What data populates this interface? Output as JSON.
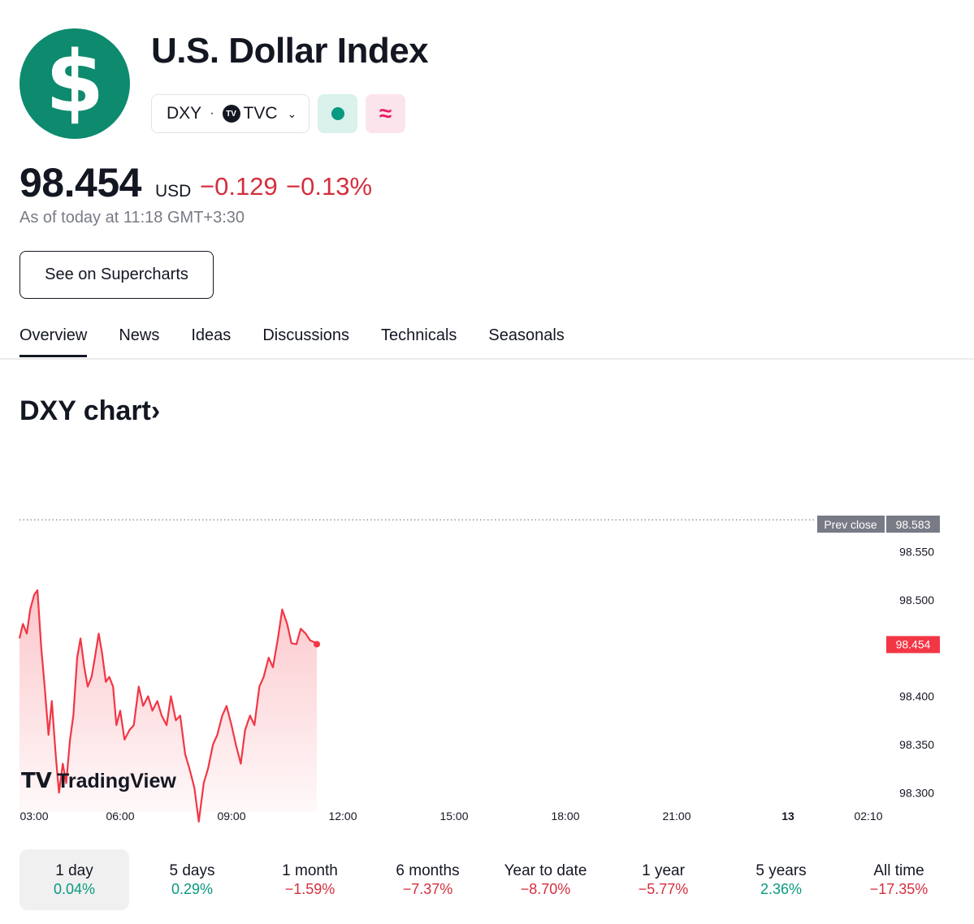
{
  "symbol": {
    "logo_glyph": "$",
    "logo_color": "#0e8a6e",
    "name": "U.S. Dollar Index",
    "ticker": "DXY",
    "separator": "·",
    "exchange_logo": "TV",
    "exchange": "TVC",
    "market_status_icon": "market-open-dot-icon",
    "delay_icon": "delayed-data-icon",
    "delay_glyph": "≈"
  },
  "quote": {
    "price": "98.454",
    "currency": "USD",
    "change": "−0.129",
    "change_percent": "−0.13%",
    "as_of": "As of today at 11:18 GMT+3:30"
  },
  "supercharts_button": "See on Supercharts",
  "tabs": [
    "Overview",
    "News",
    "Ideas",
    "Discussions",
    "Technicals",
    "Seasonals"
  ],
  "active_tab": "Overview",
  "chart_section_title": "DXY chart›",
  "chart_data": {
    "type": "area",
    "watermark": "TradingView",
    "x_tick_labels": [
      "03:00",
      "06:00",
      "09:00",
      "12:00",
      "15:00",
      "18:00",
      "21:00",
      "13",
      "02:10"
    ],
    "y_tick_labels": [
      "98.550",
      "98.500",
      "98.400",
      "98.350",
      "98.300"
    ],
    "ylim": [
      98.28,
      98.6
    ],
    "prev_close_label": "Prev close",
    "prev_close": 98.583,
    "prev_close_text": "98.583",
    "last_price": 98.454,
    "last_price_text": "98.454",
    "series": [
      {
        "x": [
          "02:30",
          "02:37",
          "02:45",
          "02:52",
          "03:00",
          "03:07",
          "03:15",
          "03:22",
          "03:30",
          "03:37",
          "03:45",
          "03:52",
          "04:00",
          "04:07",
          "04:15",
          "04:22",
          "04:30",
          "04:37",
          "04:45",
          "04:52",
          "05:00",
          "05:07",
          "05:15",
          "05:22",
          "05:30",
          "05:37",
          "05:45",
          "05:52",
          "06:00",
          "06:07",
          "06:15",
          "06:22",
          "06:30",
          "06:37",
          "06:45",
          "06:52",
          "07:00",
          "07:07",
          "07:15",
          "07:22",
          "07:30",
          "07:37",
          "07:45",
          "07:52",
          "08:00",
          "08:07",
          "08:15",
          "08:22",
          "08:30",
          "08:37",
          "08:45",
          "08:52",
          "09:00",
          "09:07",
          "09:15",
          "09:22",
          "09:30",
          "09:37",
          "09:45",
          "09:52",
          "10:00",
          "10:07",
          "10:15",
          "10:22",
          "10:30",
          "10:37",
          "10:45",
          "10:52",
          "11:00",
          "11:07",
          "11:14",
          "11:18"
        ],
        "values": [
          98.46,
          98.475,
          98.465,
          98.49,
          98.505,
          98.51,
          98.45,
          98.41,
          98.36,
          98.395,
          98.34,
          98.3,
          98.33,
          98.31,
          98.355,
          98.38,
          98.44,
          98.46,
          98.43,
          98.41,
          98.42,
          98.44,
          98.465,
          98.445,
          98.415,
          98.42,
          98.41,
          98.37,
          98.385,
          98.355,
          98.365,
          98.37,
          98.41,
          98.39,
          98.4,
          98.385,
          98.395,
          98.38,
          98.37,
          98.4,
          98.375,
          98.38,
          98.34,
          98.325,
          98.305,
          98.27,
          98.31,
          98.325,
          98.35,
          98.36,
          98.38,
          98.39,
          98.37,
          98.35,
          98.33,
          98.365,
          98.38,
          98.37,
          98.41,
          98.42,
          98.44,
          98.43,
          98.46,
          98.49,
          98.475,
          98.455,
          98.454,
          98.47,
          98.465,
          98.458,
          98.456,
          98.454
        ]
      }
    ],
    "line_color": "#f23645",
    "fill_color": "#f7c9ce"
  },
  "ranges": [
    {
      "label": "1 day",
      "value": "0.04%",
      "dir": "pos",
      "active": true
    },
    {
      "label": "5 days",
      "value": "0.29%",
      "dir": "pos",
      "active": false
    },
    {
      "label": "1 month",
      "value": "−1.59%",
      "dir": "neg",
      "active": false
    },
    {
      "label": "6 months",
      "value": "−7.37%",
      "dir": "neg",
      "active": false
    },
    {
      "label": "Year to date",
      "value": "−8.70%",
      "dir": "neg",
      "active": false
    },
    {
      "label": "1 year",
      "value": "−5.77%",
      "dir": "neg",
      "active": false
    },
    {
      "label": "5 years",
      "value": "2.36%",
      "dir": "pos",
      "active": false
    },
    {
      "label": "All time",
      "value": "−17.35%",
      "dir": "neg",
      "active": false
    }
  ],
  "colors": {
    "positive": "#089981",
    "negative": "#d32f3f",
    "text": "#131722",
    "muted": "#787b86"
  }
}
